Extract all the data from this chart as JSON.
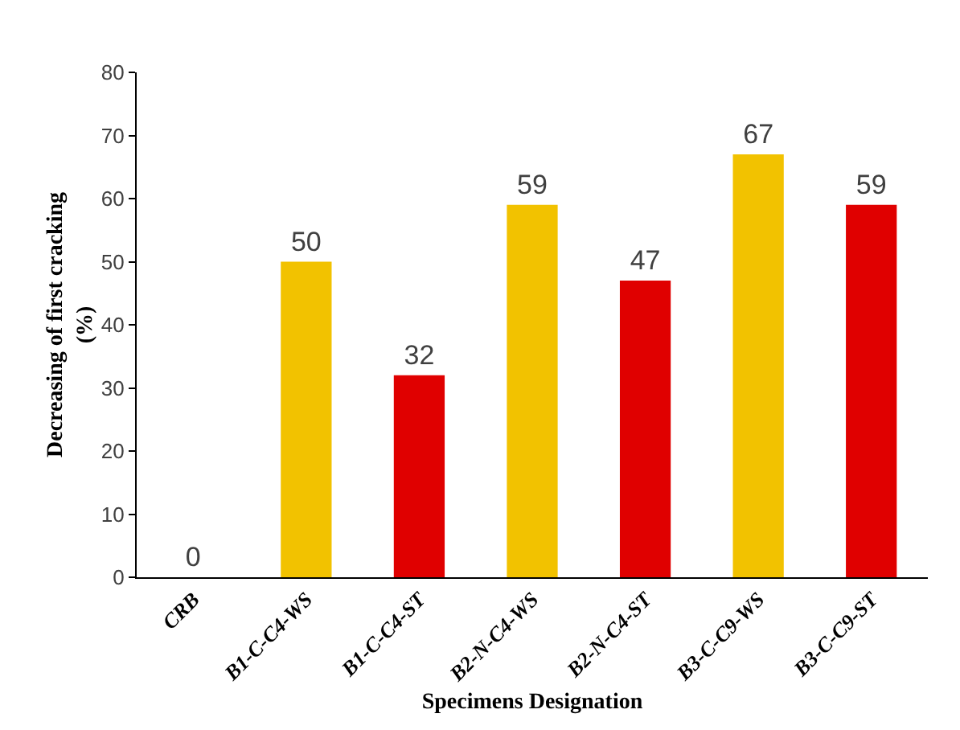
{
  "chart_data": {
    "type": "bar",
    "xlabel": "Specimens Designation",
    "ylabel": "Decreasing of first cracking (%)",
    "categories": [
      "CRB",
      "B1-C-C4-WS",
      "B1-C-C4-ST",
      "B2-N-C4-WS",
      "B2-N-C4-ST",
      "B3-C-C9-WS",
      "B3-C-C9-ST"
    ],
    "values": [
      0,
      50,
      32,
      59,
      47,
      67,
      59
    ],
    "colors": [
      "#f2c200",
      "#f2c200",
      "#e00000",
      "#f2c200",
      "#e00000",
      "#f2c200",
      "#e00000"
    ],
    "ylim": [
      0,
      80
    ],
    "yticks": [
      0,
      10,
      20,
      30,
      40,
      50,
      60,
      70,
      80
    ],
    "grid": false,
    "data_labels": true
  }
}
